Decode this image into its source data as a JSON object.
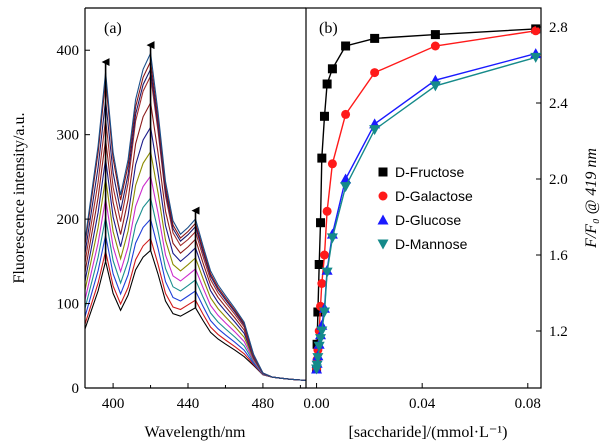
{
  "chart_data": [
    {
      "type": "line",
      "panel_label": "(a)",
      "xlabel": "Wavelength/nm",
      "ylabel": "Fluorescence intensity/a.u.",
      "xlim": [
        385,
        503
      ],
      "ylim": [
        0,
        450
      ],
      "x_ticks": [
        400,
        440,
        480
      ],
      "y_ticks": [
        0,
        100,
        200,
        300,
        400
      ],
      "grid": false,
      "legend": "none",
      "curve_x": [
        385,
        392,
        396,
        400,
        404,
        408,
        412,
        416,
        420,
        424,
        428,
        432,
        436,
        440,
        444,
        448,
        452,
        456,
        460,
        465,
        470,
        475,
        480,
        485,
        490,
        495,
        500,
        503
      ],
      "curve_count": 12,
      "peak_values_396": [
        150,
        162,
        181,
        202,
        224,
        248,
        271,
        294,
        318,
        341,
        364,
        374
      ],
      "peak_values_420": [
        163,
        177,
        200,
        225,
        251,
        280,
        309,
        338,
        370,
        378,
        387,
        397
      ],
      "peak_values_444": [
        95,
        104,
        115,
        128,
        141,
        154,
        166,
        176,
        185,
        191,
        195,
        200
      ],
      "arrows": [
        {
          "x": 396,
          "from": 150,
          "to": 386
        },
        {
          "x": 420,
          "from": 163,
          "to": 406
        },
        {
          "x": 444,
          "from": 95,
          "to": 210
        }
      ],
      "series_colors": [
        "#000000",
        "#d01b1b",
        "#1f3fd9",
        "#1b8f8f",
        "#cc2bcc",
        "#8c8c00",
        "#1b1b8a",
        "#8c1b1b",
        "#a02c2c",
        "#1b1b6e",
        "#8a1515",
        "#1a4f8a"
      ]
    },
    {
      "type": "scatter",
      "panel_label": "(b)",
      "xlabel": "[saccharide]/(mmol·L⁻¹)",
      "ylabel": "F/F₀ @ 419 nm",
      "xlim": [
        -0.004,
        0.085
      ],
      "ylim": [
        0.9,
        2.9
      ],
      "x_ticks": [
        "0.00",
        "0.04",
        "0.08"
      ],
      "y_ticks": [
        "1.2",
        "1.6",
        "2.0",
        "2.4",
        "2.8"
      ],
      "grid": false,
      "legend": "center-right",
      "series": [
        {
          "name": "D-Fructose",
          "color": "#000000",
          "marker": "square",
          "x": [
            0.0,
            0.0002,
            0.0005,
            0.001,
            0.0015,
            0.002,
            0.003,
            0.004,
            0.006,
            0.011,
            0.022,
            0.045,
            0.083
          ],
          "y": [
            1.0,
            1.13,
            1.3,
            1.55,
            1.77,
            2.11,
            2.33,
            2.5,
            2.58,
            2.7,
            2.74,
            2.76,
            2.79
          ]
        },
        {
          "name": "D-Galactose",
          "color": "#ff1a1a",
          "marker": "circle",
          "x": [
            0.0,
            0.0002,
            0.0005,
            0.001,
            0.0015,
            0.002,
            0.003,
            0.004,
            0.006,
            0.011,
            0.022,
            0.045,
            0.083
          ],
          "y": [
            1.0,
            1.05,
            1.1,
            1.2,
            1.33,
            1.45,
            1.6,
            1.83,
            2.08,
            2.34,
            2.56,
            2.7,
            2.78
          ]
        },
        {
          "name": "D-Glucose",
          "color": "#1a1aff",
          "marker": "triangle-up",
          "x": [
            0.0,
            0.0002,
            0.0005,
            0.001,
            0.0015,
            0.002,
            0.003,
            0.004,
            0.006,
            0.011,
            0.022,
            0.045,
            0.083
          ],
          "y": [
            1.0,
            1.03,
            1.07,
            1.13,
            1.18,
            1.23,
            1.32,
            1.52,
            1.71,
            2.0,
            2.29,
            2.52,
            2.66
          ]
        },
        {
          "name": "D-Mannose",
          "color": "#158a8a",
          "marker": "triangle-down",
          "x": [
            0.0,
            0.0002,
            0.0005,
            0.001,
            0.0015,
            0.002,
            0.003,
            0.004,
            0.006,
            0.011,
            0.022,
            0.045,
            0.083
          ],
          "y": [
            1.0,
            1.02,
            1.06,
            1.12,
            1.16,
            1.2,
            1.3,
            1.51,
            1.69,
            1.96,
            2.26,
            2.49,
            2.64
          ]
        }
      ]
    }
  ]
}
